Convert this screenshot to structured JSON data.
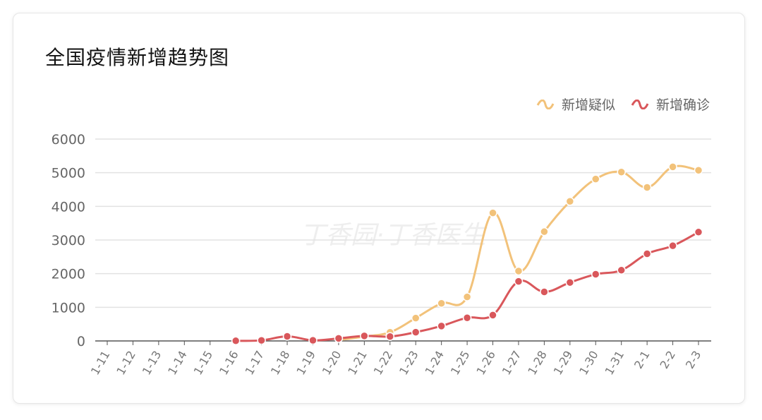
{
  "chart_data": {
    "type": "line",
    "title": "全国疫情新增趋势图",
    "watermark": "丁香园·丁香医生",
    "categories": [
      "1-11",
      "1-12",
      "1-13",
      "1-14",
      "1-15",
      "1-16",
      "1-17",
      "1-18",
      "1-19",
      "1-20",
      "1-21",
      "1-22",
      "1-23",
      "1-24",
      "1-25",
      "1-26",
      "1-27",
      "1-28",
      "1-29",
      "1-30",
      "1-31",
      "2-1",
      "2-2",
      "2-3"
    ],
    "ylim": [
      0,
      6000
    ],
    "yticks": [
      0,
      1000,
      2000,
      3000,
      4000,
      5000,
      6000
    ],
    "grid": true,
    "smooth": true,
    "legend_position": "top-right",
    "series": [
      {
        "name": "新增疑似",
        "color": "#f2c27a",
        "values": [
          null,
          null,
          null,
          null,
          null,
          null,
          null,
          null,
          null,
          27,
          130,
          257,
          680,
          1118,
          1309,
          3806,
          2077,
          3248,
          4148,
          4812,
          5019,
          4562,
          5173,
          5072
        ],
        "markers_from": "1-22"
      },
      {
        "name": "新增确诊",
        "color": "#d9575b",
        "values": [
          null,
          null,
          null,
          null,
          null,
          4,
          17,
          136,
          19,
          77,
          149,
          131,
          259,
          444,
          688,
          769,
          1771,
          1459,
          1737,
          1982,
          2102,
          2590,
          2829,
          3235
        ]
      }
    ]
  }
}
